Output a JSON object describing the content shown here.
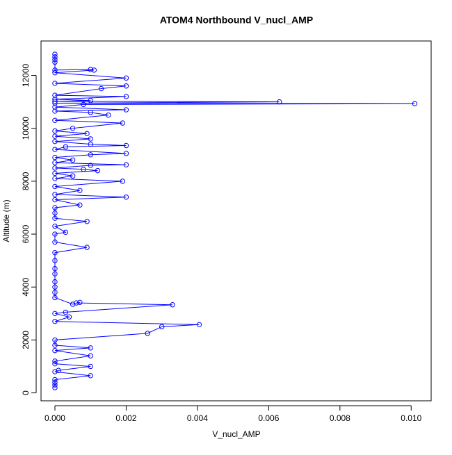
{
  "chart_data": {
    "type": "line",
    "title": "ATOM4 Northbound V_nucl_AMP",
    "x_label": "V_nucl_AMP",
    "y_label": "Altitude (m)",
    "color": "#0000ff",
    "xlim": [
      -0.00039,
      0.01056
    ],
    "ylim": [
      -300,
      13300
    ],
    "xticks": [
      {
        "value": 0,
        "label": "0.000"
      },
      {
        "value": 0.002,
        "label": "0.002"
      },
      {
        "value": 0.004,
        "label": "0.004"
      },
      {
        "value": 0.006,
        "label": "0.006"
      },
      {
        "value": 0.008,
        "label": "0.008"
      },
      {
        "value": 0.01,
        "label": "0.010"
      }
    ],
    "yticks": [
      0,
      2000,
      4000,
      6000,
      8000,
      10000,
      12000
    ],
    "x": [
      0,
      0,
      0,
      0,
      0.001,
      0,
      0.0001,
      0.001,
      0,
      0,
      0.001,
      0,
      0.001,
      0,
      0,
      0.0026,
      0.003,
      0.00405,
      0,
      0.0004,
      0,
      0.0003,
      0.0033,
      0.0006,
      0.0007,
      0.0005,
      0,
      0,
      0,
      0,
      0,
      0,
      0,
      0,
      0.0009,
      0,
      0,
      0.0003,
      0,
      0.0009,
      0,
      0,
      0,
      0.0007,
      0,
      0.002,
      0,
      0.0007,
      0,
      0.0019,
      0,
      0.0005,
      0,
      0.0012,
      0.0008,
      0,
      0.001,
      0.002,
      0,
      0.0005,
      0,
      0.001,
      0.002,
      0,
      0.0003,
      0.002,
      0.001,
      0,
      0.001,
      0,
      0.0009,
      0,
      0.0005,
      0.0019,
      0,
      0.0015,
      0.001,
      0,
      0.002,
      0,
      0.0008,
      0.0101,
      0,
      0.0063,
      0,
      0.001,
      0,
      0.002,
      0,
      0.0013,
      0.002,
      0,
      0.002,
      0,
      0.0011,
      0.001,
      0,
      0,
      0,
      0,
      0
    ],
    "values": [
      200,
      300,
      400,
      500,
      650,
      800,
      850,
      1000,
      1100,
      1200,
      1400,
      1600,
      1700,
      1800,
      2000,
      2250,
      2500,
      2580,
      2700,
      2870,
      3000,
      3050,
      3330,
      3400,
      3420,
      3350,
      3600,
      3800,
      4000,
      4200,
      4500,
      4700,
      5000,
      5300,
      5500,
      5700,
      6000,
      6070,
      6300,
      6480,
      6600,
      6800,
      7000,
      7100,
      7300,
      7400,
      7500,
      7650,
      7800,
      8000,
      8100,
      8200,
      8300,
      8400,
      8450,
      8500,
      8600,
      8620,
      8700,
      8800,
      8900,
      9000,
      9050,
      9200,
      9300,
      9350,
      9400,
      9500,
      9600,
      9700,
      9800,
      9900,
      10000,
      10200,
      10300,
      10500,
      10600,
      10650,
      10700,
      10800,
      10900,
      10930,
      10950,
      11000,
      11020,
      11050,
      11100,
      11200,
      11250,
      11500,
      11600,
      11700,
      11900,
      12100,
      12200,
      12220,
      12200,
      12500,
      12600,
      12700,
      12800
    ]
  }
}
